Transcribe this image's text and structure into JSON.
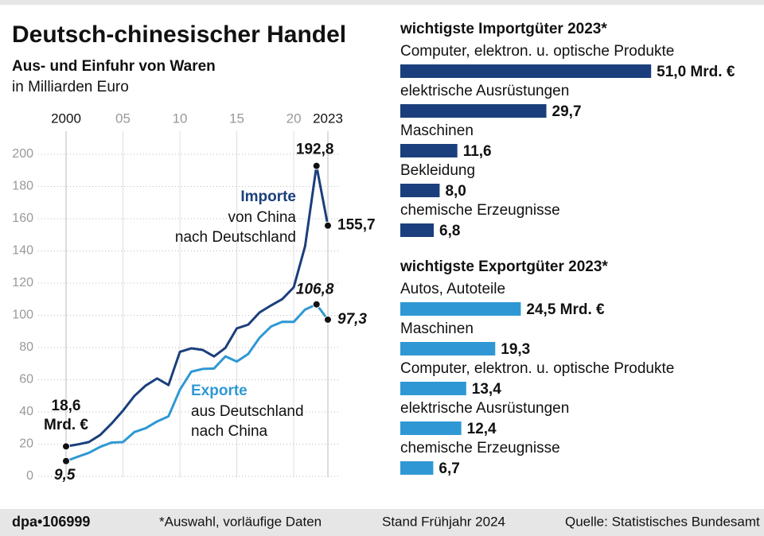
{
  "chart_data": [
    {
      "type": "line",
      "title": "Deutsch-chinesischer Handel",
      "subtitle": "Aus- und Einfuhr von Waren",
      "ylabel": "in Milliarden Euro",
      "x": [
        2000,
        2001,
        2002,
        2003,
        2004,
        2005,
        2006,
        2007,
        2008,
        2009,
        2010,
        2011,
        2012,
        2013,
        2014,
        2015,
        2016,
        2017,
        2018,
        2019,
        2020,
        2021,
        2022,
        2023
      ],
      "series": [
        {
          "name": "Importe",
          "description": [
            "von China",
            "nach Deutschland"
          ],
          "color": "#1b3f7c",
          "values": [
            18.6,
            19.8,
            21.3,
            25.7,
            32.8,
            40.8,
            49.9,
            56.4,
            60.8,
            56.7,
            77.3,
            79.5,
            78.5,
            74.5,
            79.8,
            91.9,
            94.2,
            101.8,
            106.1,
            110.1,
            117.4,
            143.0,
            192.8,
            155.7
          ],
          "value_labels": [
            "18,6 Mrd. €",
            null,
            null,
            null,
            null,
            null,
            null,
            null,
            null,
            null,
            null,
            null,
            null,
            null,
            null,
            null,
            null,
            null,
            null,
            null,
            null,
            null,
            "192,8",
            "155,7"
          ]
        },
        {
          "name": "Exporte",
          "description": [
            "aus Deutschland",
            "nach China"
          ],
          "color": "#2f98d4",
          "values": [
            9.5,
            12.1,
            14.6,
            18.3,
            21.0,
            21.3,
            27.5,
            29.9,
            34.1,
            37.3,
            53.8,
            65.0,
            66.7,
            67.0,
            74.5,
            71.3,
            76.0,
            86.1,
            93.0,
            96.0,
            95.9,
            103.6,
            106.8,
            97.3
          ],
          "value_labels": [
            "9,5",
            null,
            null,
            null,
            null,
            null,
            null,
            null,
            null,
            null,
            null,
            null,
            null,
            null,
            null,
            null,
            null,
            null,
            null,
            null,
            null,
            null,
            "106,8",
            "97,3"
          ]
        }
      ],
      "xlim": [
        2000,
        2023
      ],
      "xticks": [
        2000,
        {
          "value": 2005,
          "label": "05"
        },
        {
          "value": 2010,
          "label": "10"
        },
        {
          "value": 2015,
          "label": "15"
        },
        {
          "value": 2020,
          "label": "20"
        },
        2023
      ],
      "ylim": [
        0,
        200
      ],
      "yticks": [
        0,
        20,
        40,
        60,
        80,
        100,
        120,
        140,
        160,
        180,
        200
      ],
      "grid": true
    },
    {
      "type": "bar",
      "orientation": "horizontal",
      "title": "wichtigste Importgüter 2023*",
      "categories": [
        "Computer, elektron. u. optische Produkte",
        "elektrische Ausrüstungen",
        "Maschinen",
        "Bekleidung",
        "chemische Erzeugnisse"
      ],
      "values": [
        51.0,
        29.7,
        11.6,
        8.0,
        6.8
      ],
      "value_labels": [
        "51,0 Mrd. €",
        "29,7",
        "11,6",
        "8,0",
        "6,8"
      ],
      "color": "#1b3f7c"
    },
    {
      "type": "bar",
      "orientation": "horizontal",
      "title": "wichtigste Exportgüter 2023*",
      "categories": [
        "Autos, Autoteile",
        "Maschinen",
        "Computer, elektron. u. optische Produkte",
        "elektrische Ausrüstungen",
        "chemische Erzeugnisse"
      ],
      "values": [
        24.5,
        19.3,
        13.4,
        12.4,
        6.7
      ],
      "value_labels": [
        "24,5 Mrd. €",
        "19,3",
        "13,4",
        "12,4",
        "6,7"
      ],
      "color": "#2f98d4"
    }
  ],
  "footer": {
    "agency": "dpa•106999",
    "note": "*Auswahl, vorläufige Daten",
    "date": "Stand Frühjahr 2024",
    "source": "Quelle: Statistisches Bundesamt"
  }
}
